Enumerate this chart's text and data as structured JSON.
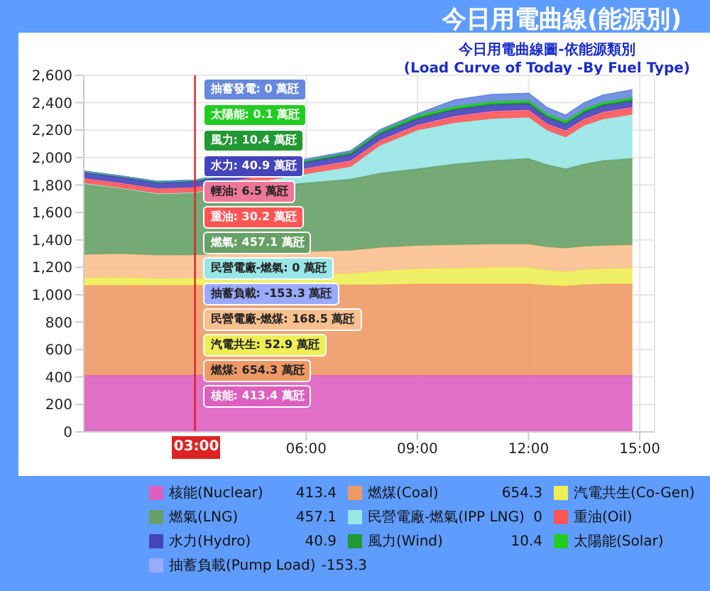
{
  "chart_data": {
    "type": "area",
    "stacked": true,
    "title": "今日用電曲線(能源別)",
    "subtitle": "今日用電曲線圖-依能源類別\n(Load Curve of Today -By Fuel Type)",
    "x": [
      0,
      1,
      2,
      3,
      7.2,
      8,
      9,
      10,
      11,
      12,
      12.5,
      13,
      13.5,
      14,
      14.8
    ],
    "xlim": [
      0,
      15.4
    ],
    "xticks": [
      {
        "value": 6,
        "label": "06:00"
      },
      {
        "value": 9,
        "label": "09:00"
      },
      {
        "value": 12,
        "label": "12:00"
      },
      {
        "value": 15,
        "label": "15:00"
      }
    ],
    "ylim": [
      0,
      2600
    ],
    "yticks": [
      0,
      200,
      400,
      600,
      800,
      {
        "value": 1000,
        "label": "1,000"
      },
      {
        "value": 1200,
        "label": "1,200"
      },
      {
        "value": 1400,
        "label": "1,400"
      },
      {
        "value": 1600,
        "label": "1,600"
      },
      {
        "value": 1800,
        "label": "1,800"
      },
      {
        "value": 2000,
        "label": "2,000"
      },
      {
        "value": 2200,
        "label": "2,200"
      },
      {
        "value": 2400,
        "label": "2,400"
      },
      {
        "value": 2600,
        "label": "2,600"
      }
    ],
    "grid": true,
    "legend": "bottom",
    "ref_lines": [
      {
        "axis": "x",
        "value": 3,
        "label": "03:00",
        "color": "#dd2222"
      }
    ],
    "series": [
      {
        "name": "核能(Nuclear)",
        "color": "#dd5fbf",
        "values": [
          413.4,
          413.4,
          413.4,
          413.4,
          413.4,
          413.4,
          413.4,
          413.4,
          413.4,
          413.4,
          413.4,
          413.4,
          413.4,
          413.4,
          413.4
        ]
      },
      {
        "name": "燃煤(Coal)",
        "color": "#ee9966",
        "values": [
          655,
          655,
          655,
          654.3,
          660,
          660,
          665,
          665,
          665,
          665,
          655,
          650,
          660,
          665,
          665
        ]
      },
      {
        "name": "汽電共生(Co-Gen)",
        "color": "#eeee55",
        "values": [
          55,
          60,
          50,
          52.9,
          80,
          100,
          110,
          115,
          120,
          120,
          110,
          105,
          110,
          110,
          115
        ]
      },
      {
        "color": "#f9c08f",
        "values": [
          170,
          170,
          170,
          168.5,
          170,
          170,
          170,
          170,
          170,
          170,
          170,
          170,
          170,
          170,
          170
        ]
      },
      {
        "name": "燃氣(LNG)",
        "color": "#66a066",
        "values": [
          520,
          480,
          450,
          457.1,
          520,
          545,
          560,
          590,
          610,
          625,
          600,
          580,
          600,
          620,
          630
        ]
      },
      {
        "name": "民營電廠-燃氣(IPP LNG)",
        "color": "#99e6e6",
        "values": [
          0,
          0,
          0,
          0,
          90,
          200,
          280,
          300,
          305,
          300,
          250,
          230,
          280,
          300,
          320
        ]
      },
      {
        "name": "重油(Oil)",
        "color": "#ff5555",
        "values": [
          30,
          30,
          30,
          30.2,
          35,
          30,
          30,
          40,
          45,
          45,
          40,
          40,
          40,
          45,
          45
        ]
      },
      {
        "color": "#ee7799",
        "values": [
          6.5,
          6.5,
          6.5,
          6.5,
          10,
          10,
          10,
          10,
          10,
          10,
          10,
          10,
          10,
          10,
          10
        ]
      },
      {
        "name": "水力(Hydro)",
        "color": "#4444bb",
        "values": [
          40,
          40,
          40,
          40.9,
          45,
          45,
          45,
          45,
          45,
          45,
          45,
          45,
          45,
          45,
          45
        ]
      },
      {
        "name": "風力(Wind)",
        "color": "#229933",
        "values": [
          10,
          10,
          10,
          10.4,
          10,
          10,
          10,
          10,
          10,
          10,
          10,
          10,
          10,
          10,
          10
        ]
      },
      {
        "name": "太陽能(Solar)",
        "color": "#22cc22",
        "values": [
          0,
          0,
          0,
          0.1,
          5,
          10,
          15,
          15,
          15,
          15,
          15,
          15,
          15,
          15,
          15
        ]
      },
      {
        "color": "#6688dd",
        "values": [
          0,
          0,
          0,
          0,
          10,
          10,
          10,
          45,
          50,
          50,
          45,
          40,
          45,
          50,
          55
        ]
      },
      {
        "name": "抽蓄負載(Pump Load)",
        "color": "#99aaff",
        "values": [
          null,
          null,
          null,
          null,
          null,
          null,
          null,
          null,
          null,
          null,
          null,
          null,
          null,
          null,
          null
        ]
      }
    ],
    "annotations": [
      "抽蓄發電: 0 萬瓩",
      "太陽能: 0.1 萬瓩",
      "風力: 10.4 萬瓩",
      "水力: 40.9 萬瓩",
      "輕油: 6.5 萬瓩",
      "重油: 30.2 萬瓩",
      "燃氣: 457.1 萬瓩",
      "民營電廠-燃氣: 0 萬瓩",
      "抽蓄負載: -153.3 萬瓩",
      "民營電廠-燃煤: 168.5 萬瓩",
      "汽電共生: 52.9 萬瓩",
      "燃煤: 654.3 萬瓩",
      "核能: 413.4 萬瓩",
      "413.4",
      "654.3",
      "457.1",
      "0",
      "40.9",
      "10.4",
      "-153.3"
    ]
  }
}
